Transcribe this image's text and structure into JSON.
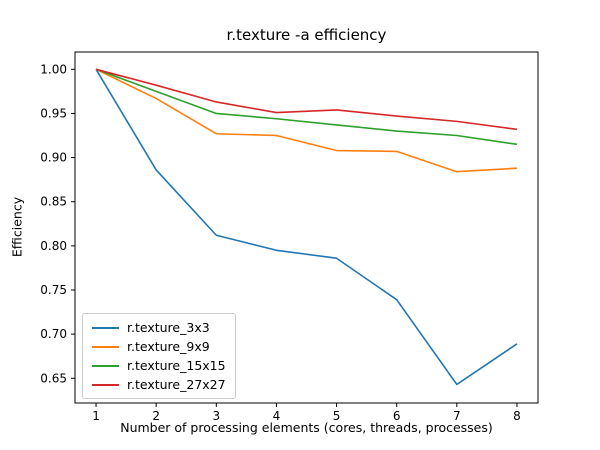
{
  "chart_data": {
    "type": "line",
    "title": "r.texture -a efficiency",
    "xlabel": "Number of processing elements (cores, threads, processes)",
    "ylabel": "Efficiency",
    "x": [
      1,
      2,
      3,
      4,
      5,
      6,
      7,
      8
    ],
    "xticks": [
      "1",
      "2",
      "3",
      "4",
      "5",
      "6",
      "7",
      "8"
    ],
    "yticks": [
      "0.65",
      "0.70",
      "0.75",
      "0.80",
      "0.85",
      "0.90",
      "0.95",
      "1.00"
    ],
    "xlim": [
      0.65,
      8.35
    ],
    "ylim": [
      0.622,
      1.0196
    ],
    "grid": false,
    "legend_position": "lower-left",
    "line_width": 1.6,
    "series": [
      {
        "name": "r.texture_3x3",
        "color": "#1f77b4",
        "values": [
          1.0,
          0.886,
          0.812,
          0.795,
          0.786,
          0.739,
          0.643,
          0.689
        ]
      },
      {
        "name": "r.texture_9x9",
        "color": "#ff7f0e",
        "values": [
          1.0,
          0.967,
          0.927,
          0.925,
          0.908,
          0.907,
          0.884,
          0.888
        ]
      },
      {
        "name": "r.texture_15x15",
        "color": "#2ca02c",
        "values": [
          1.0,
          0.975,
          0.95,
          0.944,
          0.937,
          0.93,
          0.925,
          0.915
        ]
      },
      {
        "name": "r.texture_27x27",
        "color": "#d62728",
        "values": [
          1.0,
          0.982,
          0.963,
          0.951,
          0.954,
          0.947,
          0.941,
          0.932
        ]
      }
    ],
    "axis_color": "#000000",
    "background_color": "#ffffff"
  }
}
